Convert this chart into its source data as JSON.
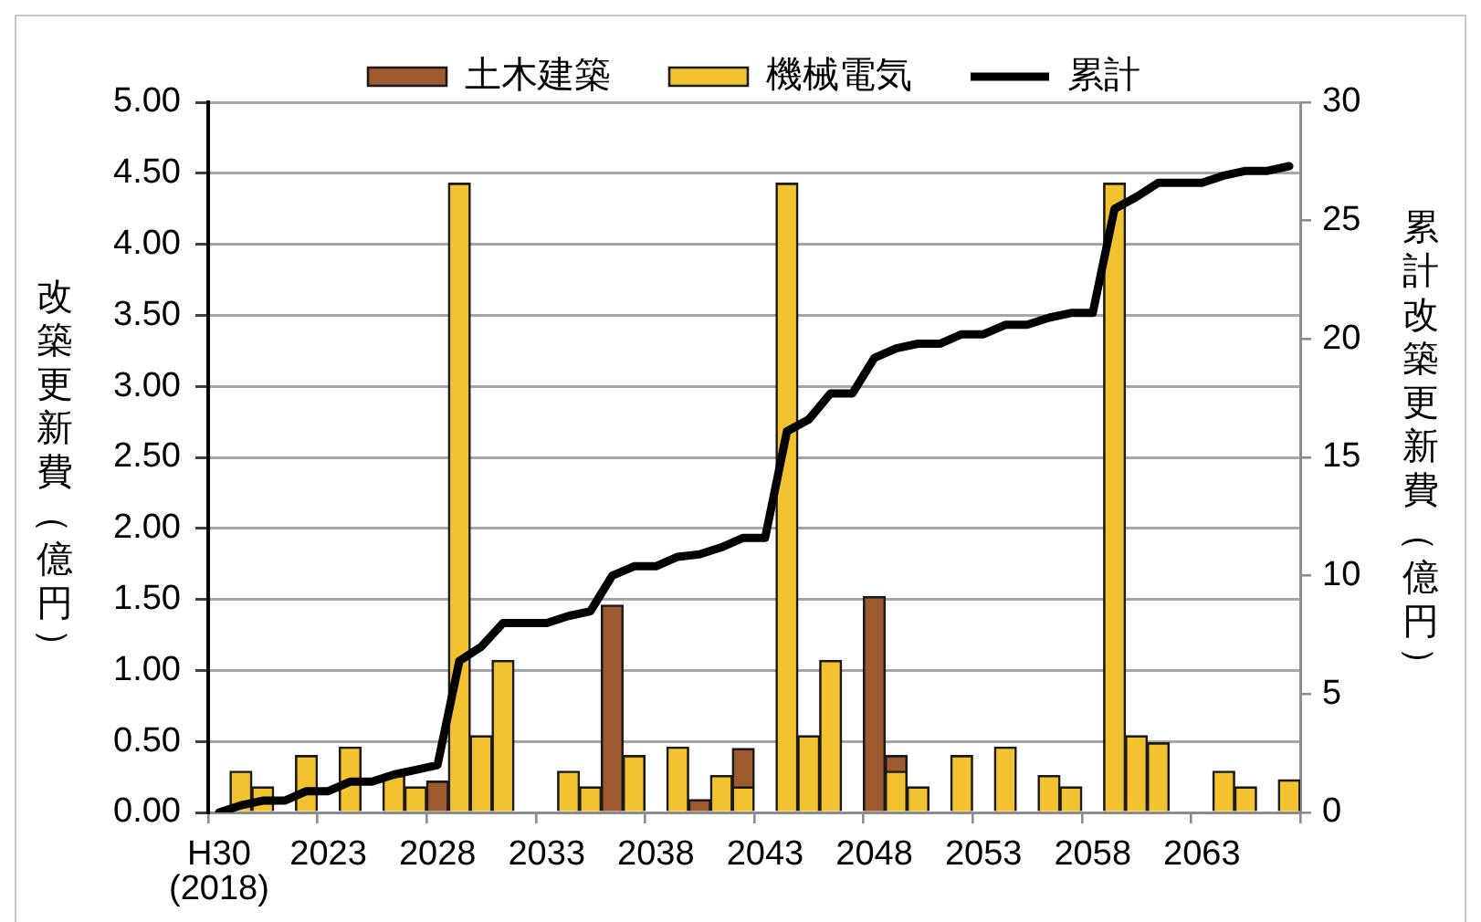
{
  "chart_data": {
    "type": "bar",
    "stacked": true,
    "categories": [
      "H30\n(2018)",
      null,
      null,
      null,
      null,
      "2023",
      null,
      null,
      null,
      null,
      "2028",
      null,
      null,
      null,
      null,
      "2033",
      null,
      null,
      null,
      null,
      "2038",
      null,
      null,
      null,
      null,
      "2043",
      null,
      null,
      null,
      null,
      "2048",
      null,
      null,
      null,
      null,
      "2053",
      null,
      null,
      null,
      null,
      "2058",
      null,
      null,
      null,
      null,
      "2063",
      null,
      null,
      null,
      null
    ],
    "series": [
      {
        "name": "機械電気",
        "color": "#f3c230",
        "values": [
          null,
          0.29,
          0.18,
          null,
          0.4,
          null,
          0.46,
          null,
          0.26,
          0.18,
          null,
          4.43,
          0.54,
          1.07,
          null,
          null,
          0.29,
          0.18,
          null,
          0.4,
          null,
          0.46,
          null,
          0.26,
          0.18,
          null,
          4.43,
          0.54,
          1.07,
          null,
          null,
          0.29,
          0.18,
          null,
          0.4,
          null,
          0.46,
          null,
          0.26,
          0.18,
          null,
          4.43,
          0.54,
          0.49,
          null,
          null,
          0.29,
          0.18,
          null,
          0.23
        ]
      },
      {
        "name": "土木建築",
        "color": "#9c5a2e",
        "values": [
          null,
          null,
          null,
          null,
          null,
          null,
          null,
          null,
          null,
          null,
          0.22,
          null,
          null,
          null,
          null,
          null,
          null,
          null,
          1.46,
          null,
          null,
          null,
          0.09,
          null,
          0.27,
          null,
          null,
          null,
          null,
          null,
          1.52,
          0.11,
          null,
          null,
          null,
          null,
          null,
          null,
          null,
          null,
          null,
          null,
          null,
          null,
          null,
          null,
          null,
          null,
          null,
          null
        ]
      },
      {
        "name": "累計",
        "type": "line",
        "axis": "y2",
        "color": "#000000",
        "values": [
          0,
          0.3,
          0.5,
          0.5,
          0.9,
          0.9,
          1.3,
          1.3,
          1.6,
          1.8,
          2.0,
          6.4,
          7.0,
          8.0,
          8.0,
          8.0,
          8.3,
          8.5,
          10.0,
          10.4,
          10.4,
          10.8,
          10.9,
          11.2,
          11.6,
          11.6,
          16.1,
          16.6,
          17.7,
          17.7,
          19.2,
          19.6,
          19.8,
          19.8,
          20.2,
          20.2,
          20.6,
          20.6,
          20.9,
          21.1,
          21.1,
          25.5,
          26.0,
          26.6,
          26.6,
          26.6,
          26.9,
          27.1,
          27.1,
          27.3
        ]
      }
    ],
    "ylabel": "改築更新費（億円）",
    "y2label": "累計改築更新費（億円）",
    "ylim": [
      0,
      5
    ],
    "yticks": [
      {
        "value": 0,
        "label": "0.00"
      },
      {
        "value": 0.5,
        "label": "0.50"
      },
      {
        "value": 1,
        "label": "1.00"
      },
      {
        "value": 1.5,
        "label": "1.50"
      },
      {
        "value": 2,
        "label": "2.00"
      },
      {
        "value": 2.5,
        "label": "2.50"
      },
      {
        "value": 3,
        "label": "3.00"
      },
      {
        "value": 3.5,
        "label": "3.50"
      },
      {
        "value": 4,
        "label": "4.00"
      },
      {
        "value": 4.5,
        "label": "4.50"
      },
      {
        "value": 5,
        "label": "5.00"
      }
    ],
    "y2lim": [
      0,
      30
    ],
    "y2ticks": [
      0,
      5,
      10,
      15,
      20,
      25,
      30
    ],
    "grid": "y",
    "legend": "top"
  }
}
